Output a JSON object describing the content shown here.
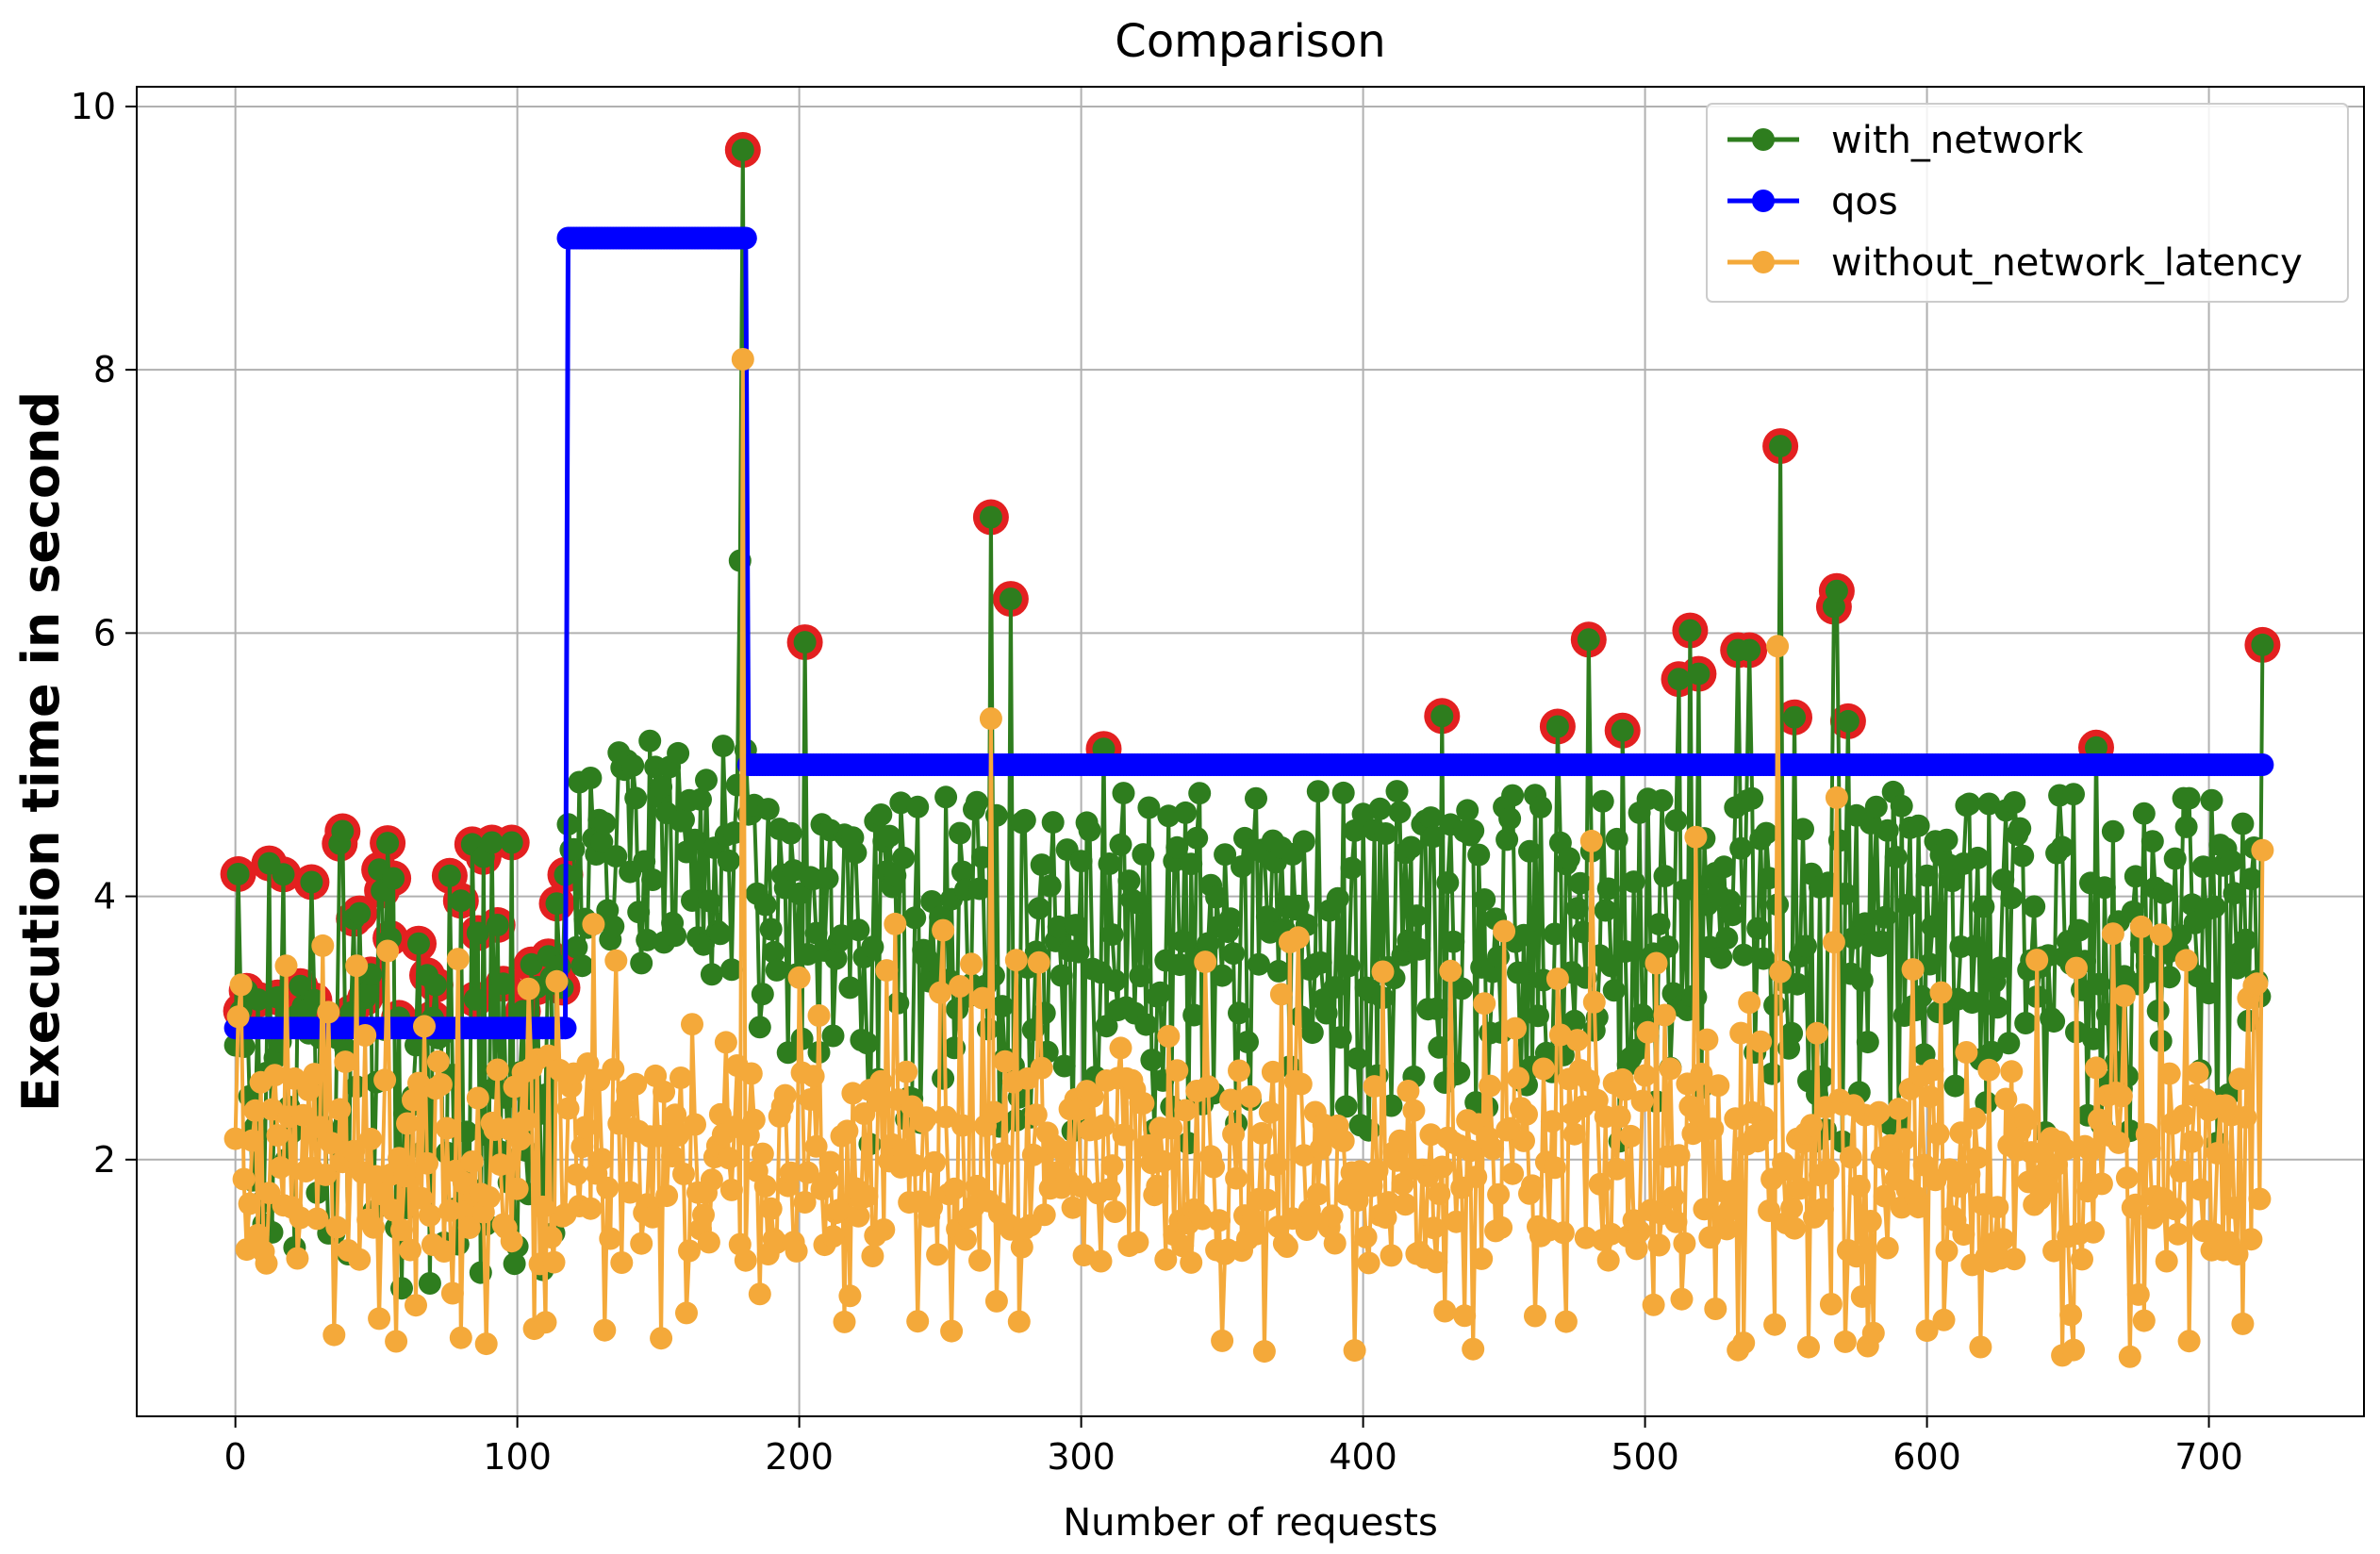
{
  "chart_data": {
    "type": "line",
    "title": "Comparison",
    "xlabel": "Number of requests",
    "ylabel": "Execution time in second",
    "xlim": [
      -35,
      755
    ],
    "ylim": [
      0.05,
      10.15
    ],
    "grid": true,
    "legend_position": "top-right",
    "xticks": [
      0,
      100,
      200,
      300,
      400,
      500,
      600,
      700
    ],
    "yticks": [
      2,
      4,
      6,
      8,
      10
    ],
    "n_points": 720,
    "colors": {
      "with_network": "#2e7d1e",
      "qos": "#0000ff",
      "without_network_latency": "#f4a93a",
      "violation_ring": "#e32020"
    },
    "series": [
      {
        "name": "with_network",
        "description": "execution time with network, per request (noisy signal ~1.0 to 9.7 s)",
        "phase_ranges": [
          {
            "x": [
              0,
              117
            ],
            "low": 1.0,
            "high": 4.5
          },
          {
            "x": [
              118,
              181
            ],
            "low": 3.4,
            "high": 5.2
          },
          {
            "x": [
              182,
              719
            ],
            "low": 2.1,
            "high": 4.8
          }
        ],
        "peaks": [
          {
            "x": 179,
            "y": 6.55
          },
          {
            "x": 180,
            "y": 9.67
          },
          {
            "x": 202,
            "y": 5.93
          },
          {
            "x": 268,
            "y": 6.88
          },
          {
            "x": 275,
            "y": 6.26
          },
          {
            "x": 308,
            "y": 5.12
          },
          {
            "x": 428,
            "y": 5.37
          },
          {
            "x": 469,
            "y": 5.29
          },
          {
            "x": 480,
            "y": 5.95
          },
          {
            "x": 492,
            "y": 5.26
          },
          {
            "x": 512,
            "y": 5.65
          },
          {
            "x": 516,
            "y": 6.02
          },
          {
            "x": 519,
            "y": 5.69
          },
          {
            "x": 533,
            "y": 5.87
          },
          {
            "x": 537,
            "y": 5.87
          },
          {
            "x": 548,
            "y": 7.42
          },
          {
            "x": 553,
            "y": 5.36
          },
          {
            "x": 567,
            "y": 6.2
          },
          {
            "x": 568,
            "y": 6.32
          },
          {
            "x": 572,
            "y": 5.33
          },
          {
            "x": 660,
            "y": 5.13
          },
          {
            "x": 719,
            "y": 5.91
          }
        ]
      },
      {
        "name": "qos",
        "segments": [
          {
            "x": [
              0,
              117
            ],
            "y": 3.0
          },
          {
            "x": [
              117,
              181
            ],
            "y": 9.0
          },
          {
            "x": [
              181,
              719
            ],
            "y": 5.0
          }
        ]
      },
      {
        "name": "without_network_latency",
        "description": "execution time without network latency, per request (~0.5 to 8.1 s)",
        "range": [
          0.5,
          3.5
        ],
        "peaks": [
          {
            "x": 180,
            "y": 8.08
          },
          {
            "x": 268,
            "y": 5.35
          },
          {
            "x": 547,
            "y": 5.9
          },
          {
            "x": 481,
            "y": 4.42
          },
          {
            "x": 518,
            "y": 4.45
          },
          {
            "x": 568,
            "y": 4.75
          },
          {
            "x": 719,
            "y": 4.35
          }
        ]
      }
    ],
    "legend": [
      "with_network",
      "qos",
      "without_network_latency"
    ]
  }
}
